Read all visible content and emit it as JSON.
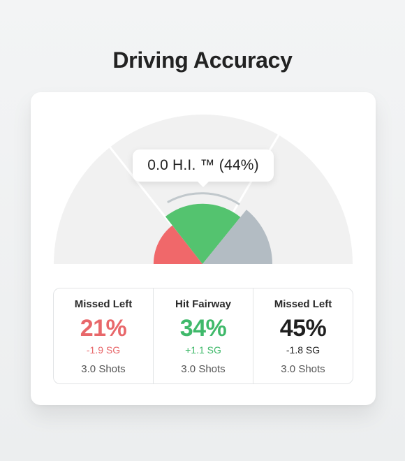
{
  "page": {
    "title": "Driving Accuracy"
  },
  "gauge": {
    "tooltip": "0.0 H.I. ™ (44%)",
    "segments": [
      {
        "name": "Missed Left",
        "percent": 21,
        "color": "#f0686a"
      },
      {
        "name": "Hit Fairway",
        "percent": 34,
        "color": "#54c36f"
      },
      {
        "name": "Missed Left",
        "percent": 45,
        "color": "#b3bcc3"
      }
    ],
    "background_color": "#f1f1f1",
    "guide_color": "#c1c8cc"
  },
  "stats": [
    {
      "label": "Missed Left",
      "percent": "21%",
      "sg": "-1.9 SG",
      "shots": "3.0 Shots",
      "color": "#e8676a"
    },
    {
      "label": "Hit Fairway",
      "percent": "34%",
      "sg": "+1.1 SG",
      "shots": "3.0 Shots",
      "color": "#3fb96a"
    },
    {
      "label": "Missed Left",
      "percent": "45%",
      "sg": "-1.8 SG",
      "shots": "3.0 Shots",
      "color": "#1f1f1f"
    }
  ]
}
